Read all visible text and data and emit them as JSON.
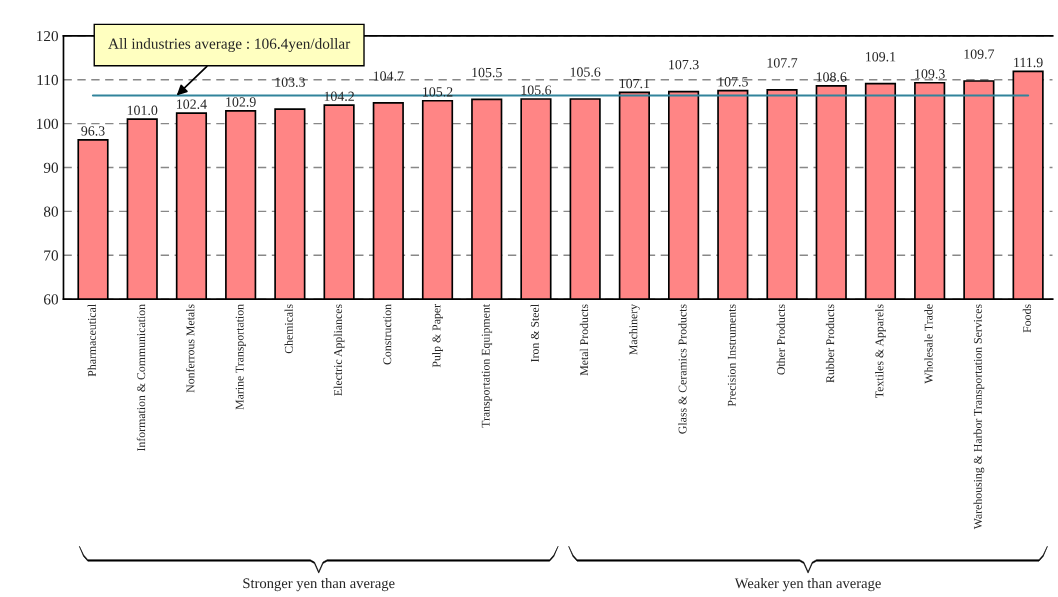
{
  "chart_data": {
    "type": "bar",
    "categories": [
      "Pharmaceutical",
      "Information & Communication",
      "Nonferrous Metals",
      "Marine Transportation",
      "Chemicals",
      "Electric Appliances",
      "Construction",
      "Pulp & Paper",
      "Transportation Equipment",
      "Iron & Steel",
      "Metal Products",
      "Machinery",
      "Glass & Ceramics Products",
      "Precision Instruments",
      "Other Products",
      "Rubber Products",
      "Textiles & Apparels",
      "Wholesale Trade",
      "Warehousing & Harbor Transportation Services",
      "Foods"
    ],
    "values": [
      96.3,
      101.0,
      102.4,
      102.9,
      103.3,
      104.2,
      104.7,
      105.2,
      105.5,
      105.6,
      105.6,
      107.1,
      107.3,
      107.5,
      107.7,
      108.6,
      109.1,
      109.3,
      109.7,
      111.9
    ],
    "color": "#ff8585",
    "ylim": [
      60,
      120
    ],
    "yticks": [
      60,
      70,
      80,
      90,
      100,
      110,
      120
    ],
    "grid": "y",
    "value_labels": [
      "96.3",
      "101.0",
      "102.4",
      "102.9",
      "103.3",
      "104.2",
      "104.7",
      "105.2",
      "105.5",
      "105.6",
      "105.6",
      "107.1",
      "107.3",
      "107.5",
      "107.7",
      "108.6",
      "109.1",
      "109.3",
      "109.7",
      "111.9"
    ],
    "ref_lines": [
      {
        "axis": "y",
        "value": 106.4,
        "label": "All industries average : 106.4yen/dollar",
        "color": "#31849b"
      }
    ],
    "annotations": [
      "Stronger yen than average",
      "Weaker yen than average"
    ]
  }
}
